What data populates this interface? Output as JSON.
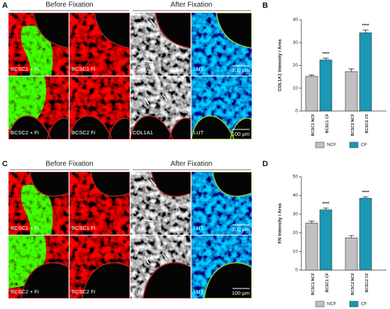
{
  "panel_labels": [
    "A",
    "B",
    "C",
    "D"
  ],
  "figure_a": {
    "headers": [
      "Before Fixation",
      "After Fixation"
    ],
    "image_labels": [
      [
        "BCSC1 + Fi",
        "BCSC1 Fi",
        "COL1A1",
        "LUT"
      ],
      [
        "BCSC2 + Fi",
        "BCSC2 Fi",
        "COL1A1",
        "LUT"
      ]
    ],
    "scale_bar": "100 µm"
  },
  "figure_c": {
    "headers": [
      "Before Fixation",
      "After Fixation"
    ],
    "image_labels": [
      [
        "BCSC1 + Fi",
        "BCSC1 Fi",
        "FN",
        "LUT"
      ],
      [
        "BCSC2 + Fi",
        "BCSC2 Fi",
        "FN",
        "LUT"
      ]
    ],
    "scale_bar": "100 µm"
  },
  "chart_data": [
    {
      "type": "bar",
      "y_label": "COL1A1 Intensity / Area",
      "categories": [
        "BCSC1 NCF",
        "BCSC1 CF",
        "BCSC2 NCF",
        "BCSC2 CF"
      ],
      "series": [
        {
          "name": "NCF",
          "color": "#c0c0c0",
          "values": [
            15.2,
            null,
            17.3,
            null
          ],
          "errors": [
            0.6,
            null,
            1.2,
            null
          ]
        },
        {
          "name": "CF",
          "color": "#1a98b4",
          "values": [
            null,
            22.4,
            null,
            34.3
          ],
          "errors": [
            null,
            0.8,
            null,
            1.2
          ],
          "significance": [
            null,
            "****",
            null,
            "****"
          ]
        }
      ],
      "ylim": [
        0,
        40
      ],
      "yticks": [
        0,
        10,
        20,
        30,
        40
      ],
      "legend": "bottom"
    },
    {
      "type": "bar",
      "y_label": "FN Intensity / Area",
      "categories": [
        "BCSC1 NCF",
        "BCSC1 CF",
        "BCSC2 NCF",
        "BCSC2 CF"
      ],
      "series": [
        {
          "name": "NCF",
          "color": "#c0c0c0",
          "values": [
            25.2,
            null,
            17.3,
            null
          ],
          "errors": [
            1.0,
            null,
            1.2,
            null
          ]
        },
        {
          "name": "CF",
          "color": "#1a98b4",
          "values": [
            null,
            32.3,
            null,
            38.5
          ],
          "errors": [
            null,
            1.0,
            null,
            0.8
          ],
          "significance": [
            null,
            "****",
            null,
            "****"
          ]
        }
      ],
      "ylim": [
        0,
        50
      ],
      "yticks": [
        0,
        10,
        20,
        30,
        40,
        50
      ],
      "legend": "bottom"
    }
  ]
}
